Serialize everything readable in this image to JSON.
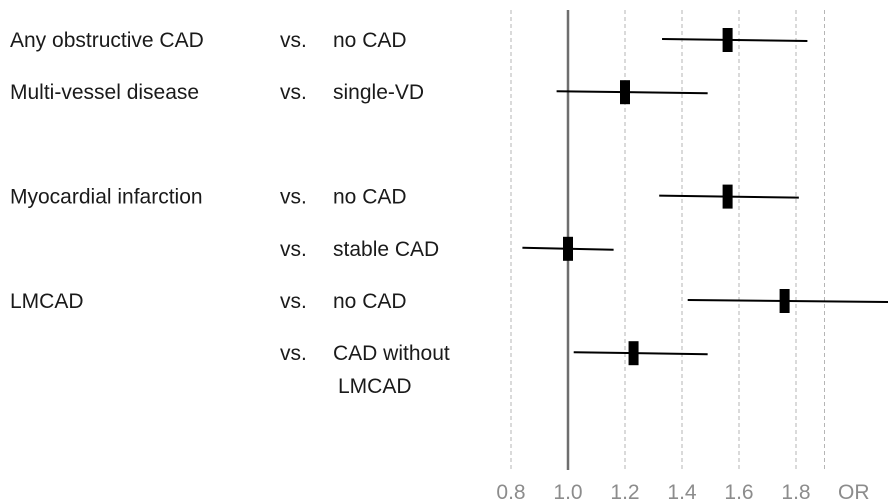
{
  "chart_data": {
    "type": "forest",
    "axis": {
      "label": "OR",
      "xlim": [
        0.8,
        1.9
      ],
      "ticks": [
        0.8,
        1.0,
        1.2,
        1.4,
        1.6,
        1.8
      ],
      "tick_labels": [
        "0.8",
        "1.0",
        "1.2",
        "1.4",
        "1.6",
        "1.8"
      ],
      "reference_line": 1.0,
      "grid": "dashed vertical at each tick"
    },
    "groups": [
      {
        "label": "Any obstructive CAD",
        "slot": 0
      },
      {
        "label": "Multi-vessel disease",
        "slot": 1
      },
      {
        "label": "Myocardial infarction",
        "slot": 3
      },
      {
        "label": "LMCAD",
        "slot": 5
      }
    ],
    "rows": [
      {
        "vs": "vs.",
        "comparison": "no CAD",
        "comparison_line2": "",
        "or": 1.56,
        "ci_low": 1.33,
        "ci_high": 1.84,
        "slot": 0
      },
      {
        "vs": "vs.",
        "comparison": "single-VD",
        "comparison_line2": "",
        "or": 1.2,
        "ci_low": 0.96,
        "ci_high": 1.49,
        "slot": 1
      },
      {
        "vs": "vs.",
        "comparison": "no CAD",
        "comparison_line2": "",
        "or": 1.56,
        "ci_low": 1.32,
        "ci_high": 1.81,
        "slot": 3
      },
      {
        "vs": "vs.",
        "comparison": "stable CAD",
        "comparison_line2": "",
        "or": 1.0,
        "ci_low": 0.84,
        "ci_high": 1.16,
        "slot": 4
      },
      {
        "vs": "vs.",
        "comparison": "no CAD",
        "comparison_line2": "",
        "or": 1.76,
        "ci_low": 1.42,
        "ci_high": 2.17,
        "slot": 5
      },
      {
        "vs": "vs.",
        "comparison": "CAD without",
        "comparison_line2": "LMCAD",
        "or": 1.23,
        "ci_low": 1.02,
        "ci_high": 1.49,
        "slot": 6
      }
    ]
  }
}
